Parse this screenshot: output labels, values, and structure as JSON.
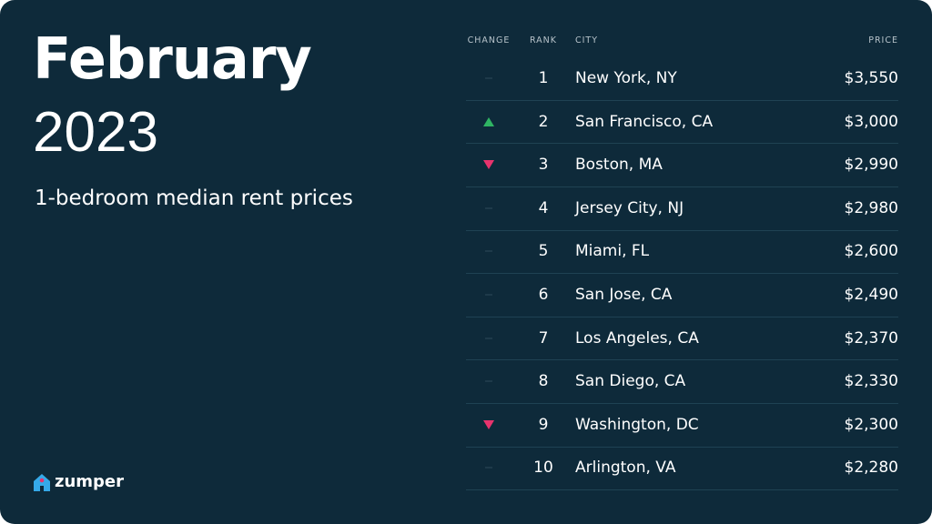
{
  "header": {
    "title": "February",
    "year": "2023",
    "subtitle": "1-bedroom median rent prices"
  },
  "table": {
    "columns": [
      "CHANGE",
      "RANK",
      "CITY",
      "PRICE"
    ],
    "rows": [
      [
        "same",
        "1",
        "New York, NY",
        "$3,550"
      ],
      [
        "up",
        "2",
        "San Francisco, CA",
        "$3,000"
      ],
      [
        "down",
        "3",
        "Boston, MA",
        "$2,990"
      ],
      [
        "same",
        "4",
        "Jersey City, NJ",
        "$2,980"
      ],
      [
        "same",
        "5",
        "Miami, FL",
        "$2,600"
      ],
      [
        "same",
        "6",
        "San Jose, CA",
        "$2,490"
      ],
      [
        "same",
        "7",
        "Los Angeles, CA",
        "$2,370"
      ],
      [
        "same",
        "8",
        "San Diego, CA",
        "$2,330"
      ],
      [
        "down",
        "9",
        "Washington, DC",
        "$2,300"
      ],
      [
        "same",
        "10",
        "Arlington, VA",
        "$2,280"
      ]
    ]
  },
  "logo": {
    "text": "zumper"
  }
}
